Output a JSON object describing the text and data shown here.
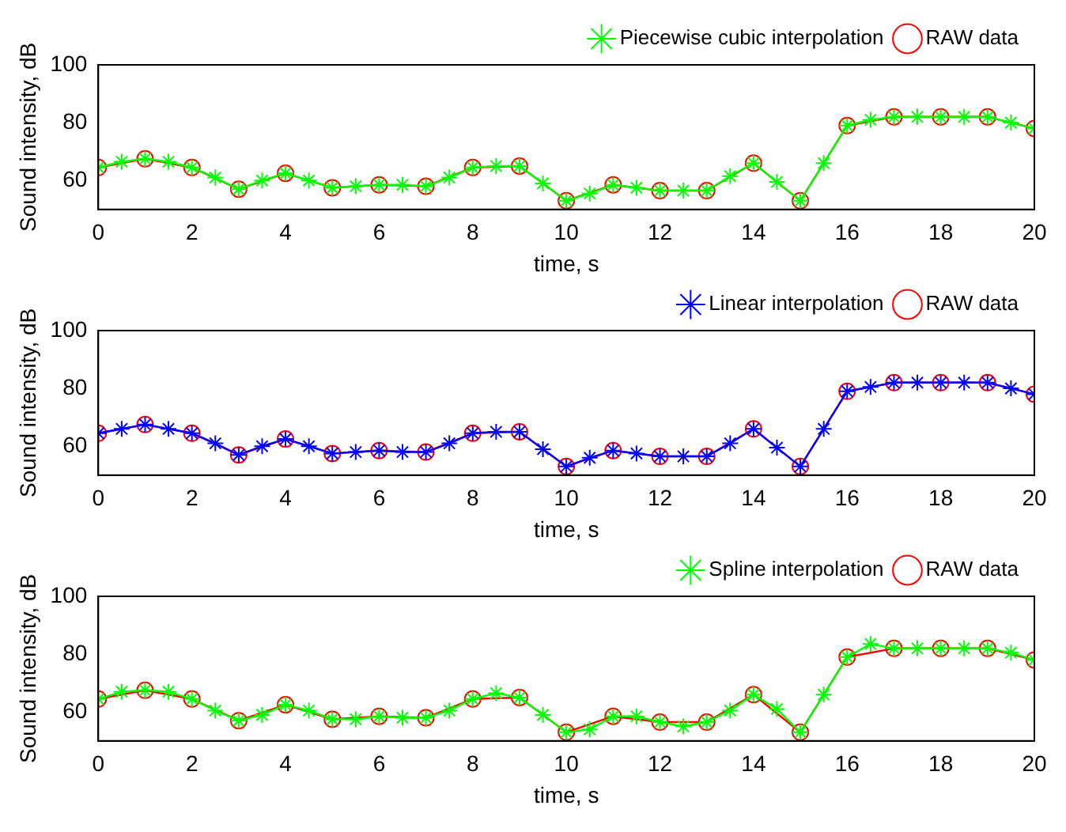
{
  "chart_data": [
    {
      "type": "line",
      "xlabel": "time, s",
      "ylabel": "Sound intensity, dB",
      "xlim": [
        0,
        20
      ],
      "xticks": [
        0,
        2,
        4,
        6,
        8,
        10,
        12,
        14,
        16,
        18,
        20
      ],
      "ylim": [
        50,
        100
      ],
      "yticks": [
        60,
        80,
        100
      ],
      "grid": false,
      "legend": "top right",
      "series": [
        {
          "name": "Piecewise cubic interpolation",
          "color": "#00ff00",
          "marker": "cross",
          "x": [
            0,
            0.5,
            1,
            1.5,
            2,
            2.5,
            3,
            3.5,
            4,
            4.5,
            5,
            5.5,
            6,
            6.5,
            7,
            7.5,
            8,
            8.5,
            9,
            9.5,
            10,
            10.5,
            11,
            11.5,
            12,
            12.5,
            13,
            13.5,
            14,
            14.5,
            15,
            15.5,
            16,
            16.5,
            17,
            17.5,
            18,
            18.5,
            19,
            19.5,
            20
          ],
          "values": [
            64.5,
            66.5,
            67.5,
            66.5,
            64.5,
            61,
            57,
            60,
            62.5,
            60,
            57.5,
            58,
            58.5,
            58.5,
            58,
            61,
            64.5,
            65,
            65,
            59,
            53,
            55.5,
            58.5,
            57.5,
            56.5,
            56.5,
            56.5,
            61.5,
            66,
            59.5,
            53,
            66,
            79,
            81,
            82,
            82,
            82,
            82,
            82,
            80,
            78
          ]
        },
        {
          "name": "RAW data",
          "color": "#ff0000",
          "marker": "circle",
          "x": [
            0,
            1,
            2,
            3,
            4,
            5,
            6,
            7,
            8,
            9,
            10,
            11,
            12,
            13,
            14,
            15,
            16,
            17,
            18,
            19,
            20
          ],
          "values": [
            64.5,
            67.5,
            64.5,
            57,
            62.5,
            57.5,
            58.5,
            58,
            64.5,
            65,
            53,
            58.5,
            56.5,
            56.5,
            66,
            53,
            79,
            82,
            82,
            82,
            78
          ]
        }
      ]
    },
    {
      "type": "line",
      "xlabel": "time, s",
      "ylabel": "Sound intensity, dB",
      "xlim": [
        0,
        20
      ],
      "xticks": [
        0,
        2,
        4,
        6,
        8,
        10,
        12,
        14,
        16,
        18,
        20
      ],
      "ylim": [
        50,
        100
      ],
      "yticks": [
        60,
        80,
        100
      ],
      "grid": false,
      "legend": "top right",
      "series": [
        {
          "name": "Linear interpolation",
          "color": "#0000ff",
          "marker": "cross",
          "x": [
            0,
            0.5,
            1,
            1.5,
            2,
            2.5,
            3,
            3.5,
            4,
            4.5,
            5,
            5.5,
            6,
            6.5,
            7,
            7.5,
            8,
            8.5,
            9,
            9.5,
            10,
            10.5,
            11,
            11.5,
            12,
            12.5,
            13,
            13.5,
            14,
            14.5,
            15,
            15.5,
            16,
            16.5,
            17,
            17.5,
            18,
            18.5,
            19,
            19.5,
            20
          ],
          "values": [
            64.5,
            66,
            67.5,
            66,
            64.5,
            61,
            57,
            60,
            62.5,
            60,
            57.5,
            58,
            58.5,
            58,
            58,
            61,
            64.5,
            65,
            65,
            59,
            53,
            56,
            58.5,
            57.5,
            56.5,
            56.5,
            56.5,
            61,
            66,
            59.5,
            53,
            66,
            79,
            80.5,
            82,
            82,
            82,
            82,
            82,
            80,
            78
          ]
        },
        {
          "name": "RAW data",
          "color": "#ff0000",
          "marker": "circle",
          "x": [
            0,
            1,
            2,
            3,
            4,
            5,
            6,
            7,
            8,
            9,
            10,
            11,
            12,
            13,
            14,
            15,
            16,
            17,
            18,
            19,
            20
          ],
          "values": [
            64.5,
            67.5,
            64.5,
            57,
            62.5,
            57.5,
            58.5,
            58,
            64.5,
            65,
            53,
            58.5,
            56.5,
            56.5,
            66,
            53,
            79,
            82,
            82,
            82,
            78
          ]
        }
      ]
    },
    {
      "type": "line",
      "xlabel": "time, s",
      "ylabel": "Sound intensity, dB",
      "xlim": [
        0,
        20
      ],
      "xticks": [
        0,
        2,
        4,
        6,
        8,
        10,
        12,
        14,
        16,
        18,
        20
      ],
      "ylim": [
        50,
        100
      ],
      "yticks": [
        60,
        80,
        100
      ],
      "grid": false,
      "legend": "top right",
      "series": [
        {
          "name": "Spline interpolation",
          "color": "#00ff00",
          "marker": "cross",
          "x": [
            0,
            0.5,
            1,
            1.5,
            2,
            2.5,
            3,
            3.5,
            4,
            4.5,
            5,
            5.5,
            6,
            6.5,
            7,
            7.5,
            8,
            8.5,
            9,
            9.5,
            10,
            10.5,
            11,
            11.5,
            12,
            12.5,
            13,
            13.5,
            14,
            14.5,
            15,
            15.5,
            16,
            16.5,
            17,
            17.5,
            18,
            18.5,
            19,
            19.5,
            20
          ],
          "values": [
            64.5,
            67,
            67.5,
            67,
            64.5,
            60.5,
            57,
            59,
            62.5,
            60.5,
            57.5,
            57.5,
            58.5,
            58,
            58,
            60.5,
            64.5,
            66.5,
            65,
            59,
            53,
            54,
            58.5,
            58.5,
            56.5,
            55,
            56.5,
            60.5,
            66,
            61,
            53,
            66,
            79,
            83.5,
            82,
            82,
            82,
            82,
            82,
            80.5,
            78
          ]
        },
        {
          "name": "RAW data",
          "color": "#ff0000",
          "marker": "circle",
          "x": [
            0,
            1,
            2,
            3,
            4,
            5,
            6,
            7,
            8,
            9,
            10,
            11,
            12,
            13,
            14,
            15,
            16,
            17,
            18,
            19,
            20
          ],
          "values": [
            64.5,
            67.5,
            64.5,
            57,
            62.5,
            57.5,
            58.5,
            58,
            64.5,
            65,
            53,
            58.5,
            56.5,
            56.5,
            66,
            53,
            79,
            82,
            82,
            82,
            78
          ]
        }
      ]
    }
  ]
}
